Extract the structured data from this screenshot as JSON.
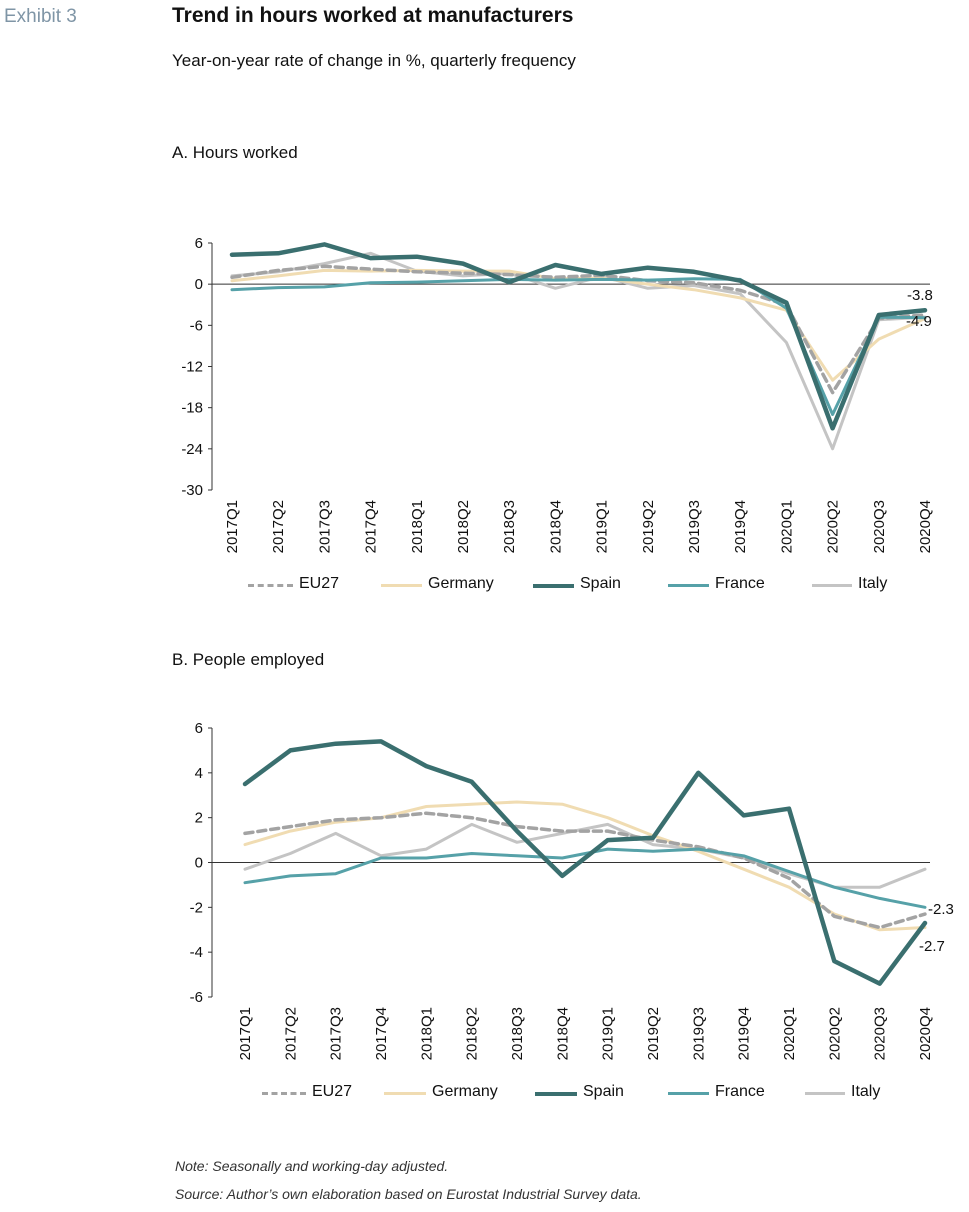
{
  "header": {
    "exhibit": "Exhibit 3",
    "title": "Trend in hours worked at manufacturers",
    "subtitle": "Year-on-year rate of change in %, quarterly frequency"
  },
  "notes": {
    "note": "Note: Seasonally and working-day adjusted.",
    "source": "Source: Author’s own elaboration based on Eurostat Industrial Survey data."
  },
  "colors": {
    "EU27": "#a3a3a3",
    "Germany": "#f0dcb2",
    "Spain": "#3a6f6f",
    "France": "#56a1a8",
    "Italy": "#c4c4c4"
  },
  "chart_data": [
    {
      "type": "line",
      "title": "A. Hours worked",
      "categories": [
        "2017Q1",
        "2017Q2",
        "2017Q3",
        "2017Q4",
        "2018Q1",
        "2018Q2",
        "2018Q3",
        "2018Q4",
        "2019Q1",
        "2019Q2",
        "2019Q3",
        "2019Q4",
        "2020Q1",
        "2020Q2",
        "2020Q3",
        "2020Q4"
      ],
      "ylim": [
        -30,
        6
      ],
      "yticks": [
        6,
        0,
        -6,
        -12,
        -18,
        -24,
        -30
      ],
      "ytick_labels": [
        "6",
        "0",
        "-6",
        "-12",
        "-18",
        "-24",
        "-30"
      ],
      "grid": false,
      "legend": "bottom",
      "series": [
        {
          "name": "EU27",
          "style": "dashed",
          "values": [
            1.0,
            2.0,
            2.6,
            2.2,
            1.8,
            1.6,
            1.4,
            1.0,
            1.3,
            0.5,
            0.2,
            -0.9,
            -3.0,
            -15.8,
            -5.0,
            -4.5
          ]
        },
        {
          "name": "Germany",
          "style": "solid",
          "values": [
            0.5,
            1.2,
            2.0,
            1.9,
            2.0,
            1.9,
            1.9,
            0.8,
            0.9,
            0.0,
            -0.8,
            -2.0,
            -3.8,
            -14.0,
            -8.0,
            -5.0
          ]
        },
        {
          "name": "Spain",
          "style": "solid",
          "values": [
            4.3,
            4.5,
            5.8,
            3.8,
            4.0,
            3.0,
            0.3,
            2.8,
            1.5,
            2.4,
            1.8,
            0.5,
            -2.7,
            -21.0,
            -4.5,
            -3.8
          ]
        },
        {
          "name": "France",
          "style": "solid",
          "values": [
            -0.8,
            -0.5,
            -0.4,
            0.2,
            0.3,
            0.5,
            0.7,
            0.6,
            0.7,
            0.6,
            0.8,
            0.7,
            -3.5,
            -19.0,
            -4.8,
            -4.9
          ]
        },
        {
          "name": "Italy",
          "style": "solid",
          "values": [
            1.2,
            1.8,
            3.0,
            4.5,
            1.9,
            1.2,
            1.6,
            -0.6,
            1.1,
            -0.6,
            -0.2,
            -1.4,
            -8.5,
            -24.0,
            -5.2,
            -4.8
          ]
        }
      ],
      "end_labels": [
        {
          "text": "-3.8"
        },
        {
          "text": "-4.9"
        }
      ]
    },
    {
      "type": "line",
      "title": "B. People employed",
      "categories": [
        "2017Q1",
        "2017Q2",
        "2017Q3",
        "2017Q4",
        "2018Q1",
        "2018Q2",
        "2018Q3",
        "2018Q4",
        "2019Q1",
        "2019Q2",
        "2019Q3",
        "2019Q4",
        "2020Q1",
        "2020Q2",
        "2020Q3",
        "2020Q4"
      ],
      "ylim": [
        -6,
        6
      ],
      "yticks": [
        6,
        4,
        2,
        0,
        -2,
        -4,
        -6
      ],
      "ytick_labels": [
        "6",
        "4",
        "2",
        "0",
        "-2",
        "-4",
        "-6"
      ],
      "grid": false,
      "legend": "bottom",
      "series": [
        {
          "name": "EU27",
          "style": "dashed",
          "values": [
            1.3,
            1.6,
            1.9,
            2.0,
            2.2,
            2.0,
            1.6,
            1.4,
            1.4,
            1.0,
            0.7,
            0.2,
            -0.7,
            -2.4,
            -2.9,
            -2.3
          ]
        },
        {
          "name": "Germany",
          "style": "solid",
          "values": [
            0.8,
            1.4,
            1.8,
            2.0,
            2.5,
            2.6,
            2.7,
            2.6,
            2.0,
            1.2,
            0.5,
            -0.3,
            -1.1,
            -2.3,
            -3.0,
            -2.9
          ]
        },
        {
          "name": "Spain",
          "style": "solid",
          "values": [
            3.5,
            5.0,
            5.3,
            5.4,
            4.3,
            3.6,
            1.4,
            -0.6,
            1.0,
            1.1,
            4.0,
            2.1,
            2.4,
            -4.4,
            -5.4,
            -2.7
          ]
        },
        {
          "name": "France",
          "style": "solid",
          "values": [
            -0.9,
            -0.6,
            -0.5,
            0.2,
            0.2,
            0.4,
            0.3,
            0.2,
            0.6,
            0.5,
            0.6,
            0.3,
            -0.4,
            -1.1,
            -1.6,
            -2.0
          ]
        },
        {
          "name": "Italy",
          "style": "solid",
          "values": [
            -0.3,
            0.4,
            1.3,
            0.3,
            0.6,
            1.7,
            0.9,
            1.3,
            1.7,
            0.8,
            0.6,
            0.2,
            -0.5,
            -1.1,
            -1.1,
            -0.3
          ]
        }
      ],
      "end_labels": [
        {
          "text": "-2.3"
        },
        {
          "text": "-2.7"
        }
      ]
    }
  ]
}
